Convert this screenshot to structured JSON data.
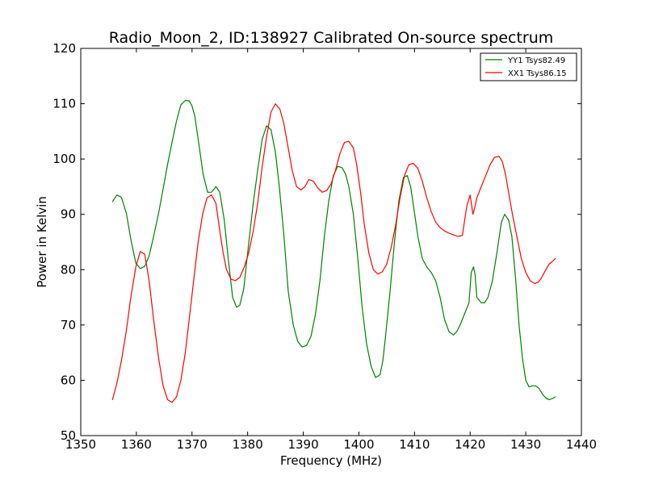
{
  "chart_data": {
    "type": "line",
    "title": "Radio_Moon_2, ID:138927 Calibrated On-source spectrum",
    "xlabel": "Frequency (MHz)",
    "ylabel": "Power in Kelvin",
    "xlim": [
      1350,
      1440
    ],
    "ylim": [
      50,
      120
    ],
    "xticks": [
      1350,
      1360,
      1370,
      1380,
      1390,
      1400,
      1410,
      1420,
      1430,
      1440
    ],
    "yticks": [
      50,
      60,
      70,
      80,
      90,
      100,
      110,
      120
    ],
    "grid": false,
    "legend_position": "top-right",
    "series": [
      {
        "name": "YY1 Tsys82.49",
        "color": "#008000",
        "x": [
          1355.7,
          1356.5,
          1357.3,
          1358.2,
          1359.0,
          1359.9,
          1360.7,
          1361.5,
          1362.3,
          1363.1,
          1364.0,
          1364.8,
          1365.6,
          1366.4,
          1367.2,
          1368.0,
          1368.8,
          1369.5,
          1370.0,
          1370.5,
          1371.2,
          1372.0,
          1372.8,
          1373.5,
          1374.3,
          1375.0,
          1375.8,
          1376.5,
          1377.3,
          1378.0,
          1378.6,
          1379.3,
          1380.1,
          1381.0,
          1381.8,
          1382.6,
          1383.4,
          1384.2,
          1385.0,
          1385.7,
          1386.5,
          1387.3,
          1388.2,
          1389.0,
          1389.8,
          1390.6,
          1391.4,
          1392.2,
          1393.0,
          1393.8,
          1394.6,
          1395.4,
          1396.2,
          1397.0,
          1397.6,
          1398.2,
          1399.0,
          1399.8,
          1400.6,
          1401.4,
          1402.2,
          1403.0,
          1403.8,
          1404.3,
          1404.8,
          1405.6,
          1406.4,
          1407.2,
          1408.0,
          1408.7,
          1409.3,
          1409.9,
          1410.6,
          1411.4,
          1412.2,
          1413.0,
          1413.8,
          1414.6,
          1415.4,
          1416.2,
          1417.0,
          1417.6,
          1418.2,
          1419.0,
          1419.8,
          1420.2,
          1420.6,
          1420.9,
          1421.2,
          1422.0,
          1422.6,
          1423.2,
          1424.0,
          1424.8,
          1425.6,
          1426.2,
          1426.9,
          1427.5,
          1428.2,
          1428.8,
          1429.4,
          1430.0,
          1430.6,
          1431.2,
          1431.8,
          1432.4,
          1433.0,
          1433.6,
          1434.2,
          1434.8,
          1435.3
        ],
        "y": [
          92.3,
          93.5,
          93.1,
          90.2,
          85.5,
          81.2,
          80.2,
          80.6,
          82.5,
          86.0,
          90.2,
          94.6,
          99.0,
          103.0,
          106.8,
          109.8,
          110.6,
          110.5,
          109.6,
          107.8,
          103.0,
          97.2,
          94.0,
          94.0,
          95.0,
          94.0,
          89.0,
          82.0,
          75.0,
          73.2,
          73.6,
          76.5,
          84.0,
          92.0,
          98.0,
          103.5,
          106.0,
          105.3,
          101.2,
          95.0,
          86.5,
          76.0,
          70.0,
          67.0,
          66.0,
          66.3,
          68.0,
          72.0,
          78.0,
          86.0,
          92.5,
          97.0,
          98.7,
          98.4,
          97.3,
          95.0,
          90.0,
          82.0,
          73.0,
          66.5,
          62.5,
          60.5,
          61.0,
          63.5,
          68.0,
          76.0,
          85.0,
          92.5,
          96.7,
          97.0,
          95.0,
          91.0,
          86.0,
          82.0,
          80.5,
          79.5,
          78.0,
          75.0,
          71.0,
          68.8,
          68.2,
          68.8,
          70.0,
          72.0,
          74.0,
          79.5,
          80.5,
          79.0,
          75.0,
          74.0,
          74.0,
          75.0,
          78.0,
          83.0,
          88.5,
          90.0,
          89.0,
          86.0,
          78.0,
          70.0,
          64.0,
          60.0,
          58.8,
          59.0,
          59.0,
          58.5,
          57.5,
          56.8,
          56.5,
          56.7,
          57.0
        ]
      },
      {
        "name": "XX1 Tsys86.15",
        "color": "#ff0000",
        "x": [
          1355.7,
          1356.5,
          1357.3,
          1358.2,
          1359.0,
          1359.9,
          1360.7,
          1361.5,
          1362.3,
          1363.1,
          1364.0,
          1364.8,
          1365.6,
          1366.4,
          1367.2,
          1368.0,
          1368.8,
          1369.5,
          1370.3,
          1371.1,
          1371.9,
          1372.7,
          1373.5,
          1374.3,
          1375.0,
          1375.6,
          1376.2,
          1377.0,
          1377.8,
          1378.6,
          1379.4,
          1380.2,
          1381.0,
          1381.8,
          1382.6,
          1383.4,
          1384.2,
          1385.0,
          1385.8,
          1386.5,
          1387.2,
          1388.0,
          1388.8,
          1389.6,
          1390.3,
          1391.0,
          1391.8,
          1392.6,
          1393.4,
          1394.2,
          1395.0,
          1395.8,
          1396.6,
          1397.4,
          1398.2,
          1399.0,
          1399.6,
          1400.3,
          1401.0,
          1401.8,
          1402.6,
          1403.4,
          1404.2,
          1405.0,
          1405.8,
          1406.6,
          1407.4,
          1408.2,
          1409.0,
          1409.8,
          1410.6,
          1411.4,
          1412.2,
          1413.0,
          1413.8,
          1414.6,
          1415.4,
          1416.2,
          1417.0,
          1417.8,
          1418.6,
          1419.4,
          1420.0,
          1420.5,
          1420.9,
          1421.2,
          1422.0,
          1422.8,
          1423.6,
          1424.4,
          1425.2,
          1425.8,
          1426.4,
          1427.0,
          1427.6,
          1428.4,
          1429.2,
          1430.0,
          1430.8,
          1431.6,
          1432.2,
          1432.8,
          1433.5,
          1434.2,
          1434.8,
          1435.3
        ],
        "y": [
          56.5,
          59.5,
          63.5,
          69.0,
          75.0,
          80.5,
          83.3,
          82.8,
          78.0,
          71.0,
          64.0,
          59.0,
          56.5,
          56.0,
          57.0,
          60.0,
          65.0,
          71.0,
          78.0,
          85.0,
          90.0,
          93.0,
          93.5,
          92.0,
          87.0,
          83.0,
          80.0,
          78.3,
          78.0,
          78.6,
          80.5,
          83.0,
          87.0,
          92.0,
          98.5,
          104.0,
          108.5,
          110.0,
          109.0,
          106.5,
          102.5,
          98.0,
          95.0,
          94.4,
          95.0,
          96.3,
          96.0,
          94.8,
          94.0,
          94.3,
          95.5,
          98.0,
          101.0,
          103.0,
          103.2,
          102.0,
          99.0,
          94.0,
          88.0,
          83.0,
          80.0,
          79.2,
          79.6,
          81.0,
          84.0,
          88.0,
          93.0,
          97.0,
          99.0,
          99.2,
          98.3,
          96.0,
          93.0,
          90.5,
          88.6,
          87.6,
          87.0,
          86.6,
          86.3,
          86.0,
          86.2,
          91.5,
          93.5,
          90.0,
          91.5,
          93.0,
          95.0,
          97.0,
          99.0,
          100.3,
          100.5,
          99.5,
          97.0,
          93.5,
          90.0,
          86.0,
          82.0,
          79.5,
          78.0,
          77.5,
          77.7,
          78.5,
          79.8,
          81.0,
          81.5,
          82.0
        ]
      }
    ]
  }
}
